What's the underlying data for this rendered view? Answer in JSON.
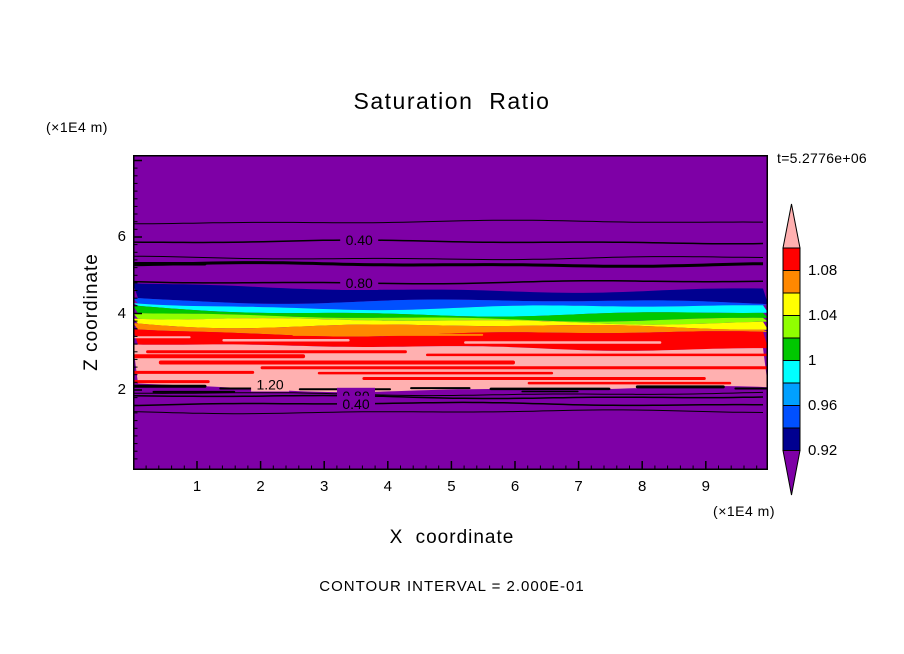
{
  "title": "Saturation Ratio",
  "timestamp": "t=5.2776e+06",
  "footer": "CONTOUR INTERVAL = 2.000E-01",
  "axes": {
    "x_label": "X coordinate",
    "y_label": "Z coordinate",
    "x_unit": "(×1E4 m)",
    "y_unit": "(×1E4 m)",
    "x_ticks": [
      "1",
      "2",
      "3",
      "4",
      "5",
      "6",
      "7",
      "8",
      "9"
    ],
    "y_ticks": [
      "2",
      "4",
      "6"
    ]
  },
  "colorbar": {
    "labels": [
      "1.08",
      "1.04",
      "1",
      "0.96",
      "0.92"
    ],
    "label_boundary_indices": [
      1,
      3,
      5,
      7,
      9
    ],
    "top_arrow_color": "#ffb0b0",
    "bottom_arrow_color": "#7e00a6",
    "segment_colors": [
      "#ff0000",
      "#ff8800",
      "#ffff00",
      "#90ff00",
      "#00c800",
      "#00ffff",
      "#00a0ff",
      "#0050ff",
      "#000090"
    ]
  },
  "chart_data": {
    "type": "heatmap",
    "title": "Saturation Ratio",
    "xlabel": "X coordinate (×1E4 m)",
    "ylabel": "Z coordinate (×1E4 m)",
    "x_range": [
      0,
      10
    ],
    "z_range": [
      0,
      8.2
    ],
    "time_label": "t=5.2776e+06",
    "contour_interval": 0.2,
    "colorbar_values": [
      1.08,
      1.04,
      1,
      0.96,
      0.92
    ],
    "background_value": "< 0.92",
    "background_color": "#7e00a6",
    "bands": [
      {
        "value_range": "0.92-0.94",
        "z_top": 4.62,
        "z_bot": 4.3,
        "color": "#000090"
      },
      {
        "value_range": "0.94-0.96",
        "z_top": 4.3,
        "z_bot": 4.16,
        "color": "#0050ff"
      },
      {
        "value_range": "0.96-0.98",
        "z_top": 4.16,
        "z_bot": 4.0,
        "color": "#00ffff"
      },
      {
        "value_range": "0.98-1.00",
        "z_top": 4.0,
        "z_bot": 3.87,
        "color": "#00c800"
      },
      {
        "value_range": "1.00-1.04",
        "z_top": 3.87,
        "z_bot": 3.79,
        "color": "#90ff00"
      },
      {
        "value_range": "1.04-1.06",
        "z_top": 3.79,
        "z_bot": 3.65,
        "color": "#ffff00"
      },
      {
        "value_range": "1.06-1.08",
        "z_top": 3.65,
        "z_bot": 3.47,
        "color": "#ff8800"
      },
      {
        "value_range": "1.08-1.10",
        "z_top": 3.47,
        "z_bot": 3.1,
        "color": "#ff0000"
      },
      {
        "value_range": "> 1.10",
        "z_top": 3.1,
        "z_bot": 2.02,
        "color": "#ffb0b0"
      }
    ],
    "streaks": [
      {
        "x1": 0.2,
        "x2": 4.3,
        "z": 3.0,
        "t": 3,
        "color": "#ff0000"
      },
      {
        "x1": 0.0,
        "x2": 2.7,
        "z": 2.88,
        "t": 4,
        "color": "#ff0000"
      },
      {
        "x1": 4.6,
        "x2": 9.97,
        "z": 2.92,
        "t": 2.5,
        "color": "#ff0000"
      },
      {
        "x1": 0.4,
        "x2": 6.0,
        "z": 2.72,
        "t": 4,
        "color": "#ff0000"
      },
      {
        "x1": 2.0,
        "x2": 9.97,
        "z": 2.58,
        "t": 3,
        "color": "#ff0000"
      },
      {
        "x1": 0.0,
        "x2": 1.9,
        "z": 2.46,
        "t": 3,
        "color": "#ff0000"
      },
      {
        "x1": 2.9,
        "x2": 6.6,
        "z": 2.44,
        "t": 2.5,
        "color": "#ff0000"
      },
      {
        "x1": 3.6,
        "x2": 9.0,
        "z": 2.3,
        "t": 3,
        "color": "#ff0000"
      },
      {
        "x1": 0.0,
        "x2": 1.2,
        "z": 2.22,
        "t": 3,
        "color": "#ff0000"
      },
      {
        "x1": 6.2,
        "x2": 9.4,
        "z": 2.18,
        "t": 2.5,
        "color": "#ff0000"
      },
      {
        "x1": 1.4,
        "x2": 3.4,
        "z": 3.3,
        "t": 2.5,
        "color": "#ffb0b0"
      },
      {
        "x1": 5.2,
        "x2": 8.3,
        "z": 3.24,
        "t": 2.5,
        "color": "#ffb0b0"
      },
      {
        "x1": 0.0,
        "x2": 0.9,
        "z": 3.38,
        "t": 2,
        "color": "#ffb0b0"
      },
      {
        "x1": 2.5,
        "x2": 5.5,
        "z": 3.44,
        "t": 2,
        "color": "#ff8800"
      }
    ],
    "dashes": [
      {
        "x1": 0.0,
        "x2": 1.15,
        "z": 5.3,
        "t": 3.5
      },
      {
        "x1": 0.0,
        "x2": 1.15,
        "z": 2.1,
        "t": 3
      },
      {
        "x1": 1.35,
        "x2": 2.2,
        "z": 2.04,
        "t": 2
      },
      {
        "x1": 2.6,
        "x2": 4.05,
        "z": 2.02,
        "t": 2
      },
      {
        "x1": 4.35,
        "x2": 5.3,
        "z": 2.05,
        "t": 2
      },
      {
        "x1": 5.6,
        "x2": 7.5,
        "z": 2.03,
        "t": 2.5
      },
      {
        "x1": 7.9,
        "x2": 9.3,
        "z": 2.08,
        "t": 3
      },
      {
        "x1": 9.45,
        "x2": 9.97,
        "z": 2.04,
        "t": 2
      },
      {
        "x1": 0.3,
        "x2": 1.6,
        "z": 1.95,
        "t": 2
      },
      {
        "x1": 6.1,
        "x2": 7.0,
        "z": 1.96,
        "t": 1.5
      }
    ],
    "contour_lines": [
      {
        "z": 6.39,
        "weight": 1
      },
      {
        "z": 5.87,
        "weight": 1.5,
        "label": "0.40",
        "label_x": 3.55,
        "label_bg": "#7e00a6"
      },
      {
        "z": 5.45,
        "weight": 1
      },
      {
        "z": 5.28,
        "weight": 3
      },
      {
        "z": 4.82,
        "weight": 1.5,
        "label": "0.80",
        "label_x": 3.55,
        "label_bg": "#7e00a6"
      },
      {
        "z": 1.9,
        "weight": 1
      },
      {
        "z": 1.82,
        "weight": 1.5,
        "label": "0.80",
        "label_x": 3.5,
        "label_bg": "#7e00a6"
      },
      {
        "z": 1.63,
        "weight": 1.5,
        "label": "0.40",
        "label_x": 3.5,
        "label_bg": "#7e00a6"
      },
      {
        "z": 1.43,
        "weight": 1
      }
    ],
    "extra_labels": [
      {
        "text": "1.20",
        "x": 2.15,
        "z": 2.18,
        "bg": "#ffb0b0"
      }
    ]
  }
}
